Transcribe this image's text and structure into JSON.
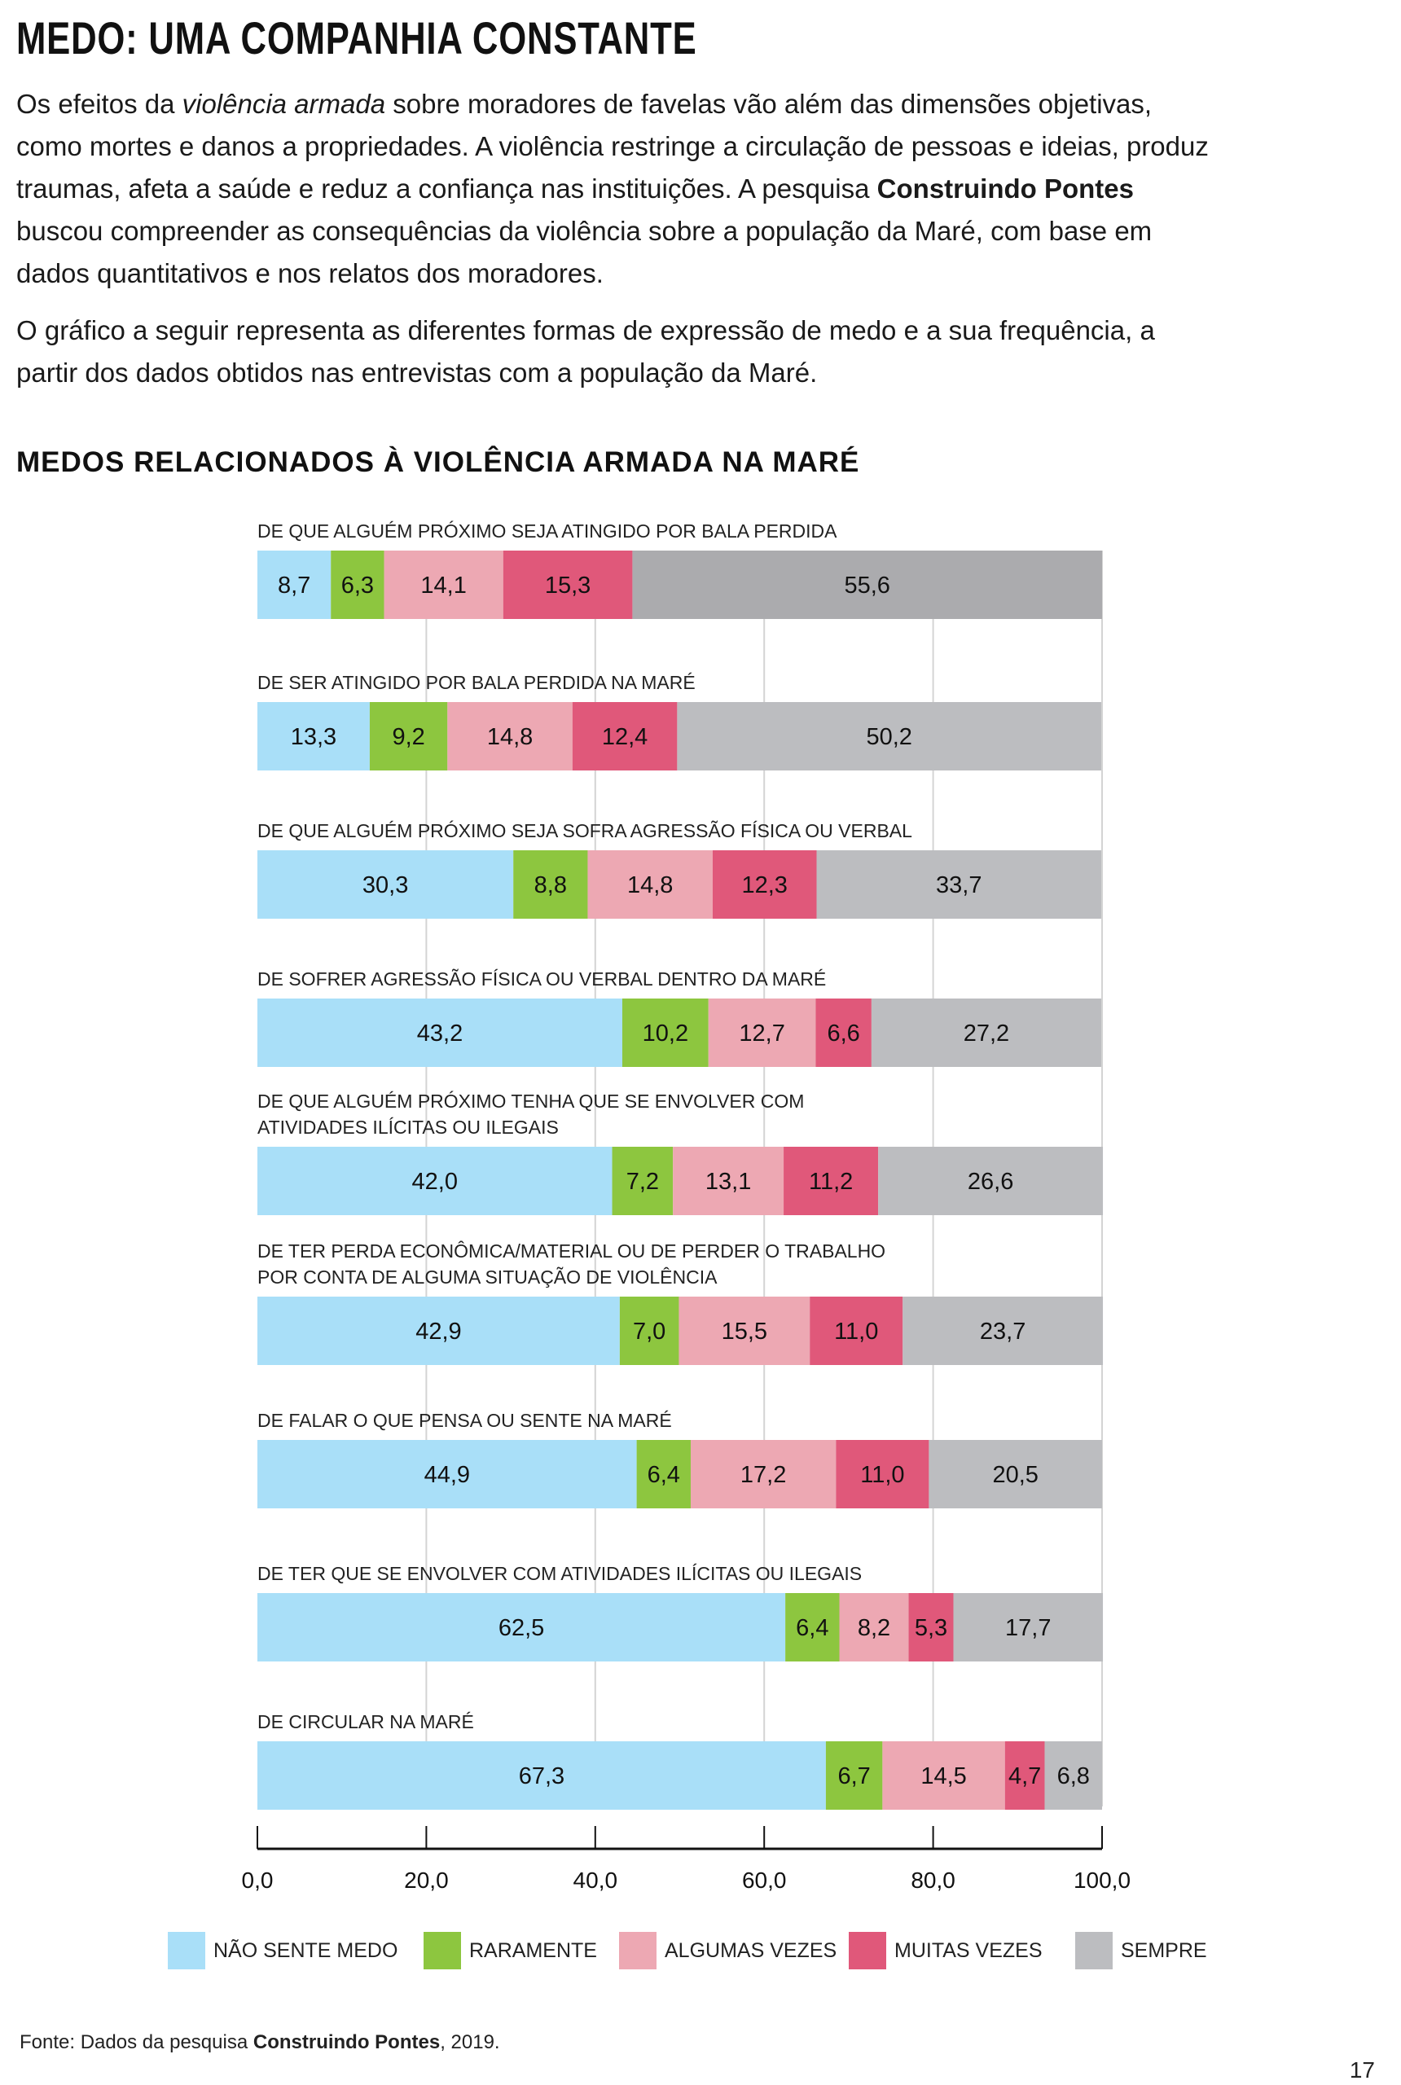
{
  "header": {
    "title": "MEDO: UMA COMPANHIA CONSTANTE"
  },
  "intro": {
    "p1": [
      {
        "text": "Os efeitos da ",
        "style": "normal"
      },
      {
        "text": "violência armada",
        "style": "italic"
      },
      {
        "text": " sobre moradores de favelas vão além das dimensões objetivas, como mortes e danos a propriedades. A violência restringe a circulação de pessoas e ideias, produz traumas, afeta a saúde e reduz a confiança nas instituições. A pesquisa ",
        "style": "normal"
      },
      {
        "text": "Construindo Pontes",
        "style": "bold"
      },
      {
        "text": " buscou compreender as consequências da violência sobre a população da Maré, com base em dados quantitativos e nos relatos dos moradores.",
        "style": "normal"
      }
    ],
    "p2": "O gráfico a seguir representa as diferentes formas de expressão de medo e a sua frequência, a partir dos dados obtidos nas entrevistas com a população da Maré."
  },
  "chart_data": {
    "type": "bar",
    "orientation": "horizontal",
    "stacked": true,
    "title": "MEDOS RELACIONADOS À VIOLÊNCIA ARMADA NA MARÉ",
    "xlabel": "",
    "ylabel": "",
    "xlim": [
      0,
      100
    ],
    "xticks": [
      0,
      20,
      40,
      60,
      80,
      100
    ],
    "xtick_labels": [
      "0,0",
      "20,0",
      "40,0",
      "60,0",
      "80,0",
      "100,0"
    ],
    "grid": true,
    "legend_position": "bottom",
    "categories": [
      "DE QUE ALGUÉM PRÓXIMO SEJA ATINGIDO POR BALA PERDIDA",
      "DE SER ATINGIDO POR BALA PERDIDA NA MARÉ",
      "DE QUE ALGUÉM PRÓXIMO SEJA SOFRA AGRESSÃO FÍSICA OU VERBAL",
      "DE SOFRER AGRESSÃO FÍSICA OU VERBAL DENTRO DA MARÉ",
      "DE QUE ALGUÉM PRÓXIMO TENHA QUE SE ENVOLVER COM\nATIVIDADES ILÍCITAS OU ILEGAIS",
      "DE TER PERDA ECONÔMICA/MATERIAL OU DE PERDER O TRABALHO\nPOR CONTA DE ALGUMA SITUAÇÃO DE VIOLÊNCIA",
      "DE FALAR O QUE PENSA OU SENTE NA MARÉ",
      "DE TER QUE SE ENVOLVER COM ATIVIDADES ILÍCITAS OU ILEGAIS",
      "DE CIRCULAR NA MARÉ"
    ],
    "series": [
      {
        "name": "NÃO SENTE MEDO",
        "color": "#a9dff8",
        "values": [
          8.7,
          13.3,
          30.3,
          43.2,
          42.0,
          42.9,
          44.9,
          62.5,
          67.3
        ],
        "labels": [
          "8,7",
          "13,3",
          "30,3",
          "43,2",
          "42,0",
          "42,9",
          "44,9",
          "62,5",
          "67,3"
        ]
      },
      {
        "name": "RARAMENTE",
        "color": "#8dc63f",
        "values": [
          6.3,
          9.2,
          8.8,
          10.2,
          7.2,
          7.0,
          6.4,
          6.4,
          6.7
        ],
        "labels": [
          "6,3",
          "9,2",
          "8,8",
          "10,2",
          "7,2",
          "7,0",
          "6,4",
          "6,4",
          "6,7"
        ]
      },
      {
        "name": "ALGUMAS VEZES",
        "color": "#eda8b3",
        "values": [
          14.1,
          14.8,
          14.8,
          12.7,
          13.1,
          15.5,
          17.2,
          8.2,
          14.5
        ],
        "labels": [
          "14,1",
          "14,8",
          "14,8",
          "12,7",
          "13,1",
          "15,5",
          "17,2",
          "8,2",
          "14,5"
        ]
      },
      {
        "name": "MUITAS VEZES",
        "color": "#e0587a",
        "values": [
          15.3,
          12.4,
          12.3,
          6.6,
          11.2,
          11.0,
          11.0,
          5.3,
          4.7
        ],
        "labels": [
          "15,3",
          "12,4",
          "12,3",
          "6,6",
          "11,2",
          "11,0",
          "11,0",
          "5,3",
          "4,7"
        ]
      },
      {
        "name": "SEMPRE",
        "color": "#bcbdc0",
        "values": [
          55.6,
          50.2,
          33.7,
          27.2,
          26.6,
          23.7,
          20.5,
          17.7,
          6.8
        ],
        "labels": [
          "55,6",
          "50,2",
          "33,7",
          "27,2",
          "26,6",
          "23,7",
          "20,5",
          "17,7",
          "6,8"
        ]
      }
    ],
    "first_bar_color_override": {
      "series": "SEMPRE",
      "row": 0,
      "color": "#ababae"
    }
  },
  "footer": {
    "source_prefix": "Fonte: Dados da pesquisa ",
    "source_bold": "Construindo Pontes",
    "source_suffix": ", 2019.",
    "page_number": "17"
  }
}
